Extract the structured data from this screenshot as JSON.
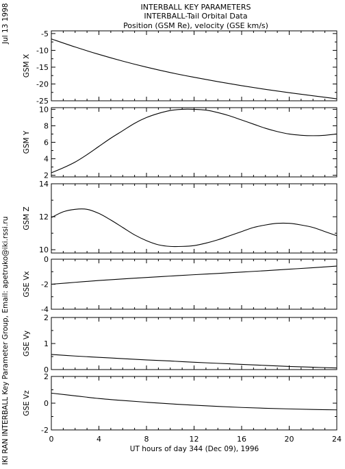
{
  "header": {
    "title": "INTERBALL KEY PARAMETERS",
    "subtitle1": "INTERBALL-Tail Orbital Data",
    "subtitle2": "Position (GSM Re), velocity (GSE km/s)"
  },
  "side": {
    "date": "Jul 13 1998",
    "credit": "IKI RAN INTERBALL Key Parameter Group, Email: apetruko@iki.rssi.ru"
  },
  "chart_data": [
    {
      "type": "line",
      "ylabel": "GSM X",
      "ylim": [
        -25,
        -4.2
      ],
      "yticks": [
        -25,
        -20,
        -15,
        -10,
        -5
      ],
      "yticklabels": [
        "-25",
        "-20",
        "-15",
        "-10",
        "-5"
      ],
      "x": [
        0,
        2,
        4,
        6,
        8,
        10,
        12,
        14,
        16,
        18,
        20,
        22,
        24
      ],
      "values": [
        -6.6,
        -9.0,
        -11.2,
        -13.2,
        -15.0,
        -16.6,
        -18.0,
        -19.3,
        -20.5,
        -21.6,
        -22.6,
        -23.5,
        -24.4
      ]
    },
    {
      "type": "line",
      "ylabel": "GSM Y",
      "ylim": [
        1.8,
        10.2
      ],
      "yticks": [
        2,
        4,
        6,
        8,
        10
      ],
      "yticklabels": [
        "2",
        "4",
        "6",
        "8",
        "10"
      ],
      "x": [
        0,
        1,
        2,
        3,
        4,
        5,
        6,
        7,
        8,
        9,
        10,
        11,
        12,
        13,
        14,
        15,
        16,
        17,
        18,
        19,
        20,
        21,
        22,
        23,
        24
      ],
      "values": [
        2.3,
        2.9,
        3.6,
        4.5,
        5.5,
        6.5,
        7.4,
        8.3,
        9.0,
        9.5,
        9.85,
        10.0,
        10.0,
        9.9,
        9.6,
        9.2,
        8.7,
        8.2,
        7.7,
        7.3,
        7.0,
        6.85,
        6.8,
        6.85,
        7.0
      ]
    },
    {
      "type": "line",
      "ylabel": "GSM Z",
      "ylim": [
        9.8,
        14.0
      ],
      "yticks": [
        10,
        12,
        14
      ],
      "yticklabels": [
        "10",
        "12",
        "14"
      ],
      "x": [
        0,
        1,
        2,
        3,
        4,
        5,
        6,
        7,
        8,
        9,
        10,
        11,
        12,
        13,
        14,
        15,
        16,
        17,
        18,
        19,
        20,
        21,
        22,
        23,
        24
      ],
      "values": [
        11.95,
        12.3,
        12.45,
        12.45,
        12.2,
        11.8,
        11.35,
        10.9,
        10.55,
        10.3,
        10.2,
        10.2,
        10.25,
        10.4,
        10.6,
        10.85,
        11.1,
        11.35,
        11.5,
        11.6,
        11.6,
        11.5,
        11.35,
        11.1,
        10.85
      ]
    },
    {
      "type": "line",
      "ylabel": "GSE Vx",
      "ylim": [
        -4,
        0
      ],
      "yticks": [
        -4,
        -2,
        0
      ],
      "yticklabels": [
        "-4",
        "-2",
        "0"
      ],
      "x": [
        0,
        2,
        4,
        6,
        8,
        10,
        12,
        14,
        16,
        18,
        20,
        22,
        24
      ],
      "values": [
        -2.0,
        -1.85,
        -1.7,
        -1.58,
        -1.46,
        -1.35,
        -1.24,
        -1.14,
        -1.03,
        -0.92,
        -0.8,
        -0.68,
        -0.55
      ]
    },
    {
      "type": "line",
      "ylabel": "GSE Vy",
      "ylim": [
        0,
        2
      ],
      "yticks": [
        0,
        1,
        2
      ],
      "yticklabels": [
        "0",
        "1",
        "2"
      ],
      "x": [
        0,
        2,
        4,
        6,
        8,
        10,
        12,
        14,
        16,
        18,
        20,
        22,
        24
      ],
      "values": [
        0.58,
        0.52,
        0.47,
        0.42,
        0.37,
        0.33,
        0.28,
        0.24,
        0.2,
        0.16,
        0.12,
        0.09,
        0.06
      ]
    },
    {
      "type": "line",
      "ylabel": "GSE Vz",
      "ylim": [
        -2,
        2
      ],
      "yticks": [
        -2,
        0,
        2
      ],
      "yticklabels": [
        "-2",
        "0",
        "2"
      ],
      "x": [
        0,
        2,
        4,
        6,
        8,
        10,
        12,
        14,
        16,
        18,
        20,
        22,
        24
      ],
      "values": [
        0.75,
        0.55,
        0.35,
        0.2,
        0.07,
        -0.05,
        -0.15,
        -0.24,
        -0.32,
        -0.38,
        -0.43,
        -0.47,
        -0.5
      ]
    }
  ],
  "xaxis": {
    "xlim": [
      0,
      24
    ],
    "ticks": [
      0,
      4,
      8,
      12,
      16,
      20,
      24
    ],
    "ticklabels": [
      "0",
      "4",
      "8",
      "12",
      "16",
      "20",
      "24"
    ],
    "xlabel": "UT hours of day 344 (Dec 09), 1996"
  }
}
